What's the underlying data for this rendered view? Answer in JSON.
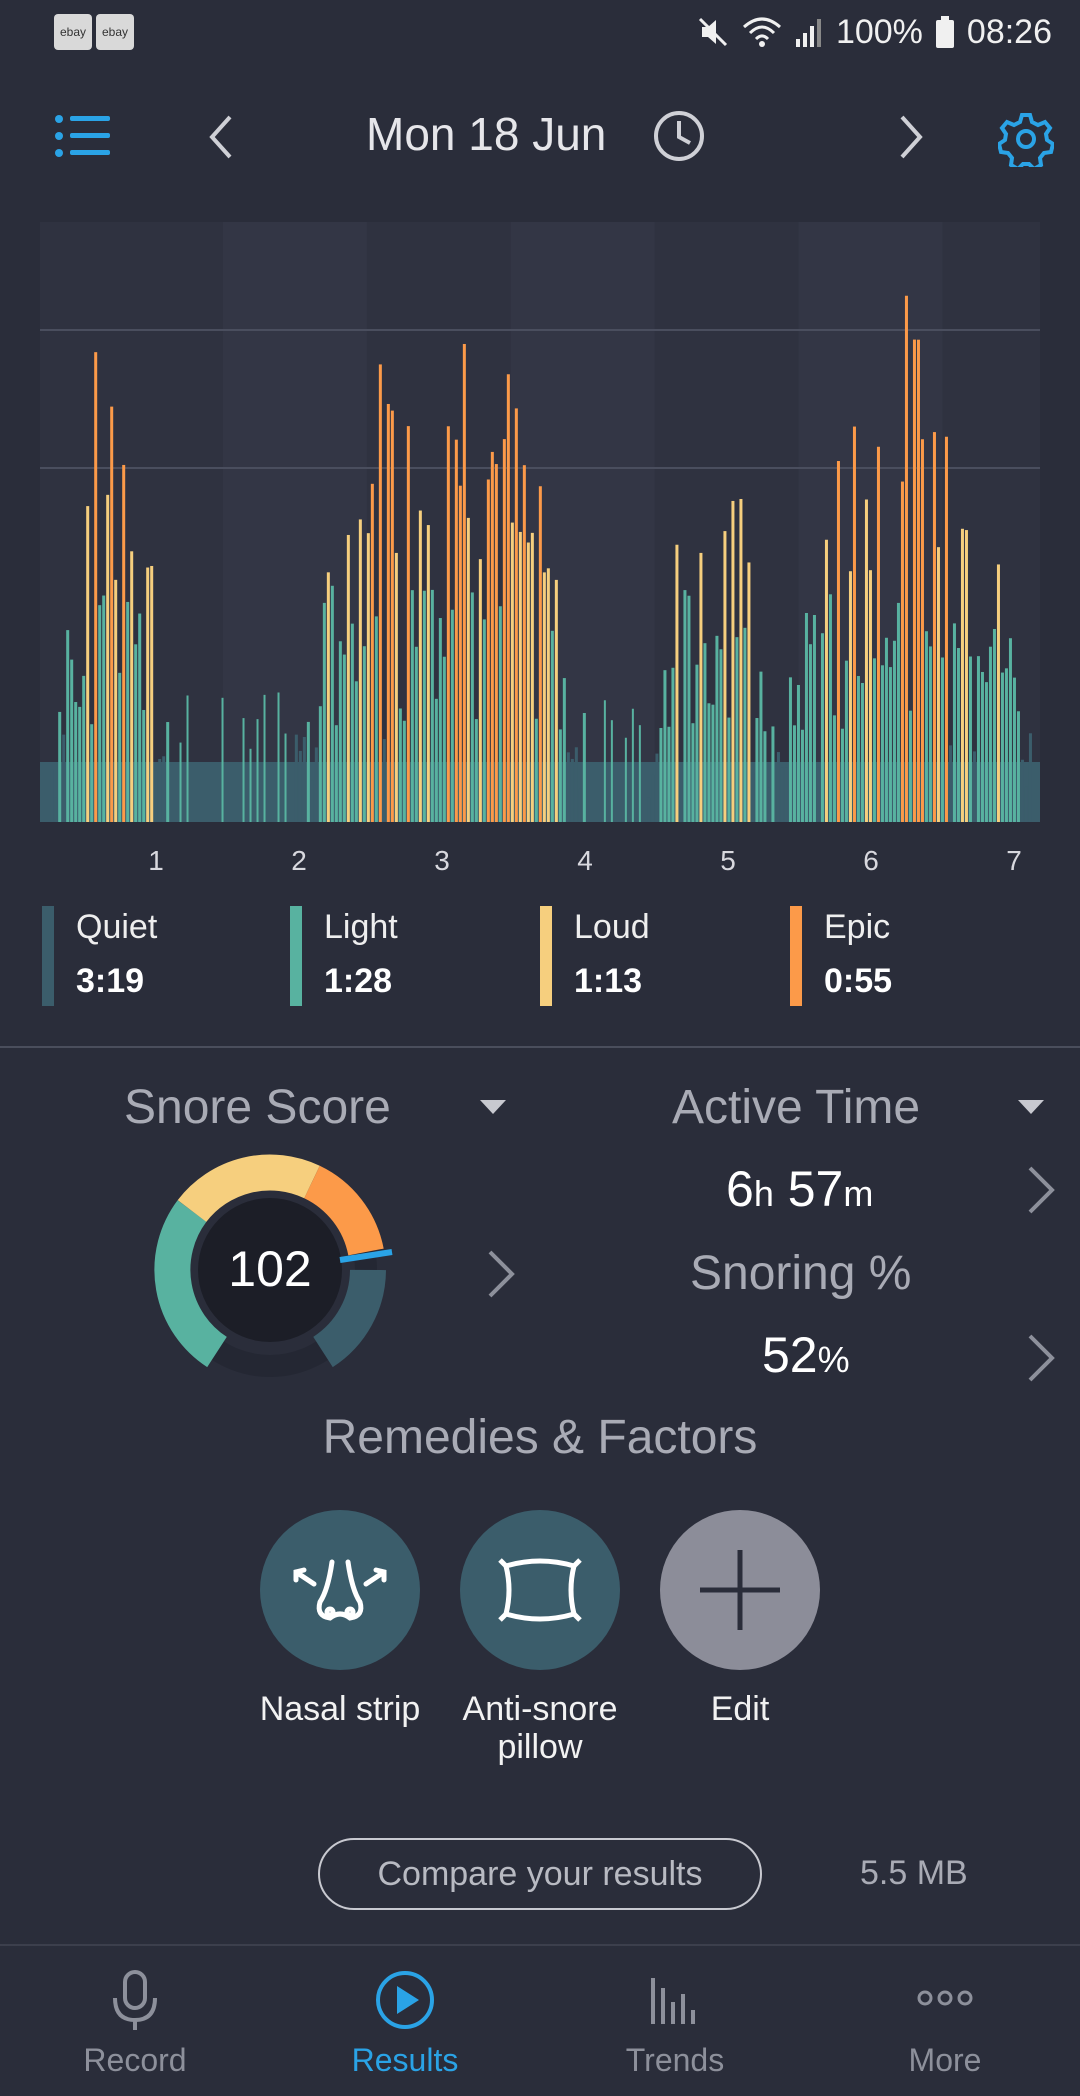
{
  "status_bar": {
    "badges": [
      "ebay",
      "ebay"
    ],
    "battery": "100%",
    "time": "08:26"
  },
  "header": {
    "date": "Mon 18 Jun",
    "icons": {
      "menu": "list-menu-icon",
      "prev": "chevron-left-icon",
      "next": "chevron-right-icon",
      "clock": "clock-icon",
      "settings": "gear-icon"
    }
  },
  "chart_data": {
    "type": "bar",
    "title": "",
    "xlabel": "",
    "ylabel": "",
    "x_ticks": [
      "1",
      "2",
      "3",
      "4",
      "5",
      "6",
      "7"
    ],
    "xlim": [
      0.25,
      7.15
    ],
    "ylim": [
      0,
      1
    ],
    "series_colors": {
      "Quiet": "#3b5d6b",
      "Light": "#58b2a0",
      "Loud": "#f6cf7e",
      "Epic": "#fc9a49"
    },
    "levels": {
      "Light": 0.15,
      "Loud": 0.4,
      "Epic": 0.55
    },
    "baseline_quiet_level": 0.1,
    "gridlines": [
      0.59,
      0.82
    ],
    "snoring_segments": [
      {
        "start": 0.3,
        "end": 1.15,
        "peak": 0.88
      },
      {
        "start": 2.0,
        "end": 4.05,
        "peak": 1.0
      },
      {
        "start": 4.45,
        "end": 5.35,
        "peak": 0.72
      },
      {
        "start": 5.35,
        "end": 7.15,
        "peak": 0.9
      }
    ],
    "gaps": [
      {
        "start": 1.15,
        "end": 2.0
      },
      {
        "start": 4.05,
        "end": 4.45
      }
    ]
  },
  "legend": [
    {
      "name": "Quiet",
      "value": "3:19",
      "color": "#3b5d6b"
    },
    {
      "name": "Light",
      "value": "1:28",
      "color": "#58b2a0"
    },
    {
      "name": "Loud",
      "value": "1:13",
      "color": "#f6cf7e"
    },
    {
      "name": "Epic",
      "value": "0:55",
      "color": "#fc9a49"
    }
  ],
  "snore_score": {
    "label": "Snore Score",
    "value": "102"
  },
  "active_time": {
    "label": "Active Time",
    "hours": "6",
    "hours_unit": "h",
    "minutes": "57",
    "minutes_unit": "m"
  },
  "snoring_percent": {
    "label": "Snoring %",
    "value": "52",
    "unit": "%"
  },
  "remedies": {
    "title": "Remedies & Factors",
    "items": [
      {
        "label": "Nasal strip",
        "icon": "nose-icon"
      },
      {
        "label": "Anti-snore pillow",
        "icon": "pillow-icon"
      },
      {
        "label": "Edit",
        "icon": "plus-icon"
      }
    ]
  },
  "compare": {
    "label": "Compare your results",
    "storage": "5.5 MB"
  },
  "nav": {
    "items": [
      {
        "label": "Record",
        "icon": "microphone-icon"
      },
      {
        "label": "Results",
        "icon": "play-icon"
      },
      {
        "label": "Trends",
        "icon": "bars-icon"
      },
      {
        "label": "More",
        "icon": "more-dots-icon"
      }
    ],
    "active_color": "#2aa3e6",
    "inactive_color": "#8d909b"
  }
}
